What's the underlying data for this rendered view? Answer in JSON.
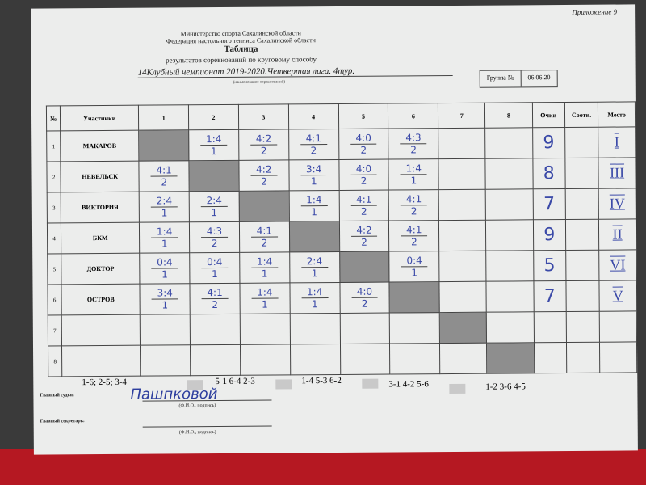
{
  "header": {
    "appendix": "Приложение 9",
    "ministry": "Министерство спорта Сахалинской области",
    "federation": "Федерация настольного тенниса Сахалинской области",
    "title": "Таблица",
    "subtitle": "результатов соревнований по круговому способу",
    "competition": "14Клубный чемпионат 2019-2020.Четвертая лига. 4тур.",
    "competition_note": "(наименование соревнований)",
    "group_label": "Группа №",
    "group_value": "06.06.20"
  },
  "table": {
    "headers": [
      "№",
      "Участники",
      "1",
      "2",
      "3",
      "4",
      "5",
      "6",
      "7",
      "8",
      "Очки",
      "Соотн.",
      "Место"
    ],
    "rows": [
      {
        "num": "1",
        "name": "МАКАРОВ",
        "cells": [
          null,
          [
            "1:4",
            "1"
          ],
          [
            "4:2",
            "2"
          ],
          [
            "4:1",
            "2"
          ],
          [
            "4:0",
            "2"
          ],
          [
            "4:3",
            "2"
          ],
          [
            "",
            ""
          ],
          [
            "",
            ""
          ]
        ],
        "points": "9",
        "ratio": "",
        "place": "I"
      },
      {
        "num": "2",
        "name": "НЕВЕЛЬСК",
        "cells": [
          [
            "4:1",
            "2"
          ],
          null,
          [
            "4:2",
            "2"
          ],
          [
            "3:4",
            "1"
          ],
          [
            "4:0",
            "2"
          ],
          [
            "1:4",
            "1"
          ],
          [
            "",
            ""
          ],
          [
            "",
            ""
          ]
        ],
        "points": "8",
        "ratio": "",
        "place": "III"
      },
      {
        "num": "3",
        "name": "ВИКТОРИЯ",
        "cells": [
          [
            "2:4",
            "1"
          ],
          [
            "2:4",
            "1"
          ],
          null,
          [
            "1:4",
            "1"
          ],
          [
            "4:1",
            "2"
          ],
          [
            "4:1",
            "2"
          ],
          [
            "",
            ""
          ],
          [
            "",
            ""
          ]
        ],
        "points": "7",
        "ratio": "",
        "place": "IV"
      },
      {
        "num": "4",
        "name": "БКМ",
        "cells": [
          [
            "1:4",
            "1"
          ],
          [
            "4:3",
            "2"
          ],
          [
            "4:1",
            "2"
          ],
          null,
          [
            "4:2",
            "2"
          ],
          [
            "4:1",
            "2"
          ],
          [
            "",
            ""
          ],
          [
            "",
            ""
          ]
        ],
        "points": "9",
        "ratio": "",
        "place": "II"
      },
      {
        "num": "5",
        "name": "ДОКТОР",
        "cells": [
          [
            "0:4",
            "1"
          ],
          [
            "0:4",
            "1"
          ],
          [
            "1:4",
            "1"
          ],
          [
            "2:4",
            "1"
          ],
          null,
          [
            "0:4",
            "1"
          ],
          [
            "",
            ""
          ],
          [
            "",
            ""
          ]
        ],
        "points": "5",
        "ratio": "",
        "place": "VI"
      },
      {
        "num": "6",
        "name": "ОСТРОВ",
        "cells": [
          [
            "3:4",
            "1"
          ],
          [
            "4:1",
            "2"
          ],
          [
            "1:4",
            "1"
          ],
          [
            "1:4",
            "1"
          ],
          [
            "4:0",
            "2"
          ],
          null,
          [
            "",
            ""
          ],
          [
            "",
            ""
          ]
        ],
        "points": "7",
        "ratio": "",
        "place": "V"
      },
      {
        "num": "7",
        "name": "",
        "cells": [
          [
            "",
            ""
          ],
          [
            "",
            ""
          ],
          [
            "",
            ""
          ],
          [
            "",
            ""
          ],
          [
            "",
            ""
          ],
          [
            "",
            ""
          ],
          null,
          [
            "",
            ""
          ]
        ],
        "points": "",
        "ratio": "",
        "place": ""
      },
      {
        "num": "8",
        "name": "",
        "cells": [
          [
            "",
            ""
          ],
          [
            "",
            ""
          ],
          [
            "",
            ""
          ],
          [
            "",
            ""
          ],
          [
            "",
            ""
          ],
          [
            "",
            ""
          ],
          [
            "",
            ""
          ],
          null
        ],
        "points": "",
        "ratio": "",
        "place": ""
      }
    ]
  },
  "schedule": [
    "1-6; 2-5; 3-4",
    "5-1  6-4  2-3",
    "1-4  5-3  6-2",
    "3-1  4-2  5-6",
    "1-2   3-6   4-5"
  ],
  "footer": {
    "judge_label": "Главный судья:",
    "judge_signature": "Пашпковой",
    "judge_note": "(Ф.И.О., подпись)",
    "secretary_label": "Главный секретарь:",
    "secretary_note": "(Ф.И.О., подпись)"
  },
  "colors": {
    "ink": "#3b4aa8",
    "shaded_cell": "#8e8e8e",
    "background": "#b51822"
  }
}
